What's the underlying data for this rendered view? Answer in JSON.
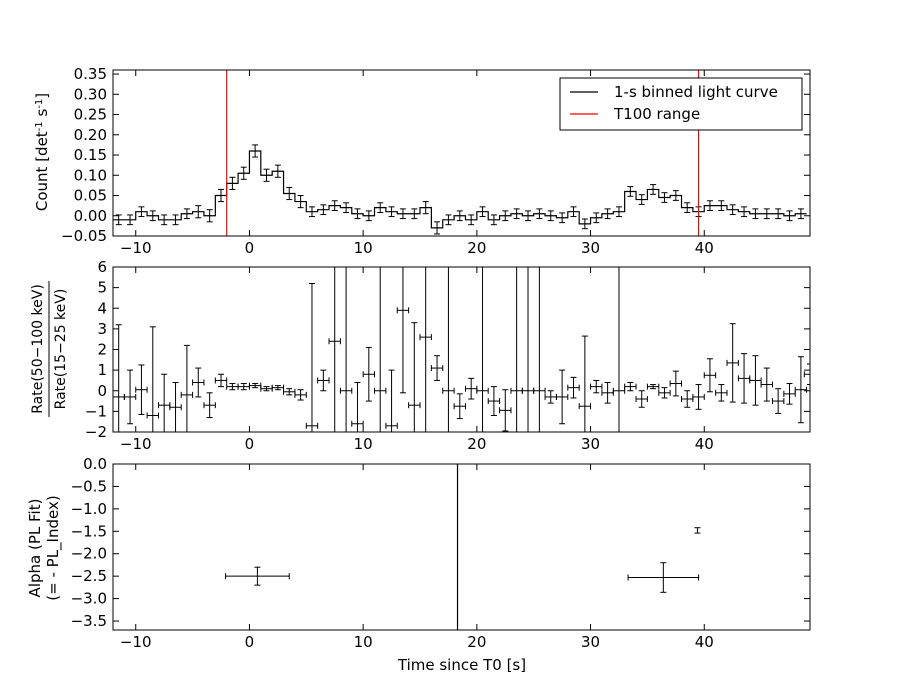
{
  "figure": {
    "background": "#ffffff",
    "line_color": "#000000",
    "range_color": "#ff0000"
  },
  "chart_data": [
    {
      "id": "p1",
      "type": "line",
      "style": "step",
      "title": "",
      "xlabel": "",
      "ylabel": "Count [det",
      "ylabel_sup": "-1",
      "ylabel_end": " s",
      "ylabel_sup2": "-1",
      "ylabel_close": "]",
      "xlim": [
        -12,
        49.3
      ],
      "ylim": [
        -0.05,
        0.36
      ],
      "yticks": [
        -0.05,
        0.0,
        0.05,
        0.1,
        0.15,
        0.2,
        0.25,
        0.3,
        0.35
      ],
      "ytick_labels": [
        "−0.05",
        "0.00",
        "0.05",
        "0.10",
        "0.15",
        "0.20",
        "0.25",
        "0.30",
        "0.35"
      ],
      "xticks": [
        -10,
        0,
        10,
        20,
        30,
        40
      ],
      "xtick_labels": [
        "−10",
        "0",
        "10",
        "20",
        "30",
        "40"
      ],
      "grid": false,
      "bin_width": 1,
      "x_start": -12,
      "values": [
        -0.01,
        -0.01,
        0.01,
        0.0,
        -0.01,
        -0.01,
        0.005,
        0.01,
        0.0,
        0.05,
        0.08,
        0.105,
        0.16,
        0.1,
        0.11,
        0.055,
        0.035,
        0.01,
        0.015,
        0.025,
        0.02,
        0.005,
        0.0,
        0.02,
        0.01,
        0.005,
        0.005,
        0.02,
        -0.03,
        -0.01,
        0.0,
        -0.01,
        0.01,
        -0.01,
        0.0,
        0.005,
        0.0,
        0.005,
        0.0,
        -0.005,
        0.01,
        -0.02,
        -0.005,
        0.005,
        0.01,
        0.06,
        0.04,
        0.065,
        0.045,
        0.05,
        0.02,
        0.01,
        0.025,
        0.025,
        0.015,
        0.01,
        0.005,
        0.005,
        0.005,
        0.0,
        0.005
      ],
      "errors": [
        0.012,
        0.012,
        0.012,
        0.012,
        0.012,
        0.012,
        0.012,
        0.015,
        0.015,
        0.015,
        0.015,
        0.015,
        0.015,
        0.015,
        0.015,
        0.015,
        0.015,
        0.012,
        0.012,
        0.012,
        0.012,
        0.012,
        0.012,
        0.012,
        0.012,
        0.012,
        0.012,
        0.015,
        0.015,
        0.012,
        0.012,
        0.012,
        0.012,
        0.012,
        0.012,
        0.012,
        0.012,
        0.012,
        0.012,
        0.012,
        0.012,
        0.012,
        0.012,
        0.012,
        0.012,
        0.012,
        0.012,
        0.012,
        0.012,
        0.012,
        0.012,
        0.012,
        0.012,
        0.012,
        0.012,
        0.012,
        0.012,
        0.012,
        0.012,
        0.012,
        0.012
      ],
      "vlines": [
        -2.0,
        39.5
      ],
      "legend": {
        "placement": "upper-right",
        "entries": [
          {
            "label": "1-s binned light curve",
            "color": "#000000"
          },
          {
            "label": "T100 range",
            "color": "#ff0000"
          }
        ]
      }
    },
    {
      "id": "p2",
      "type": "scatter",
      "style": "errorbar",
      "xlabel": "",
      "ylabel_num": "Rate(50−100 keV)",
      "ylabel_den": "Rate(15−25 keV)",
      "xlim": [
        -12,
        49.3
      ],
      "ylim": [
        -2,
        6
      ],
      "yticks": [
        -2,
        -1,
        0,
        1,
        2,
        3,
        4,
        5,
        6
      ],
      "ytick_labels": [
        "−2",
        "−1",
        "0",
        "1",
        "2",
        "3",
        "4",
        "5",
        "6"
      ],
      "xticks": [
        -10,
        0,
        10,
        20,
        30,
        40
      ],
      "xtick_labels": [
        "−10",
        "0",
        "10",
        "20",
        "30",
        "40"
      ],
      "grid": false,
      "points": [
        {
          "x": -11.5,
          "y": -0.3,
          "ey": [
            3.5,
            3.5
          ]
        },
        {
          "x": -10.5,
          "y": -0.3,
          "ey": 1.3
        },
        {
          "x": -9.5,
          "y": 0.05,
          "ey": 1.2
        },
        {
          "x": -8.5,
          "y": -1.2,
          "ey": [
            4.3,
            4.3
          ]
        },
        {
          "x": -7.5,
          "y": -0.7,
          "ey": 1.5
        },
        {
          "x": -6.5,
          "y": -0.8,
          "ey": 1.2
        },
        {
          "x": -5.5,
          "y": -0.2,
          "ey": [
            2.4,
            2.4
          ]
        },
        {
          "x": -4.5,
          "y": 0.4,
          "ey": 0.7
        },
        {
          "x": -3.5,
          "y": -0.7,
          "ey": 0.6
        },
        {
          "x": -2.5,
          "y": 0.5,
          "ey": 0.3
        },
        {
          "x": -1.5,
          "y": 0.2,
          "ey": 0.15
        },
        {
          "x": -0.5,
          "y": 0.2,
          "ey": 0.15
        },
        {
          "x": 0.5,
          "y": 0.25,
          "ey": 0.1
        },
        {
          "x": 1.5,
          "y": 0.1,
          "ey": 0.1
        },
        {
          "x": 2.5,
          "y": 0.15,
          "ey": 0.1
        },
        {
          "x": 3.5,
          "y": -0.05,
          "ey": 0.15
        },
        {
          "x": 4.5,
          "y": -0.2,
          "ey": 0.25
        },
        {
          "x": 5.5,
          "y": -1.7,
          "ey": [
            6.9,
            6.9
          ]
        },
        {
          "x": 6.5,
          "y": 0.5,
          "ey": 0.5
        },
        {
          "x": 7.5,
          "y": 2.4,
          "ey": [
            5,
            5
          ]
        },
        {
          "x": 8.5,
          "y": 0,
          "ey": [
            7,
            7
          ]
        },
        {
          "x": 9.5,
          "y": -1.6,
          "ey": [
            2,
            2
          ]
        },
        {
          "x": 10.5,
          "y": 0.8,
          "ey": 1.3
        },
        {
          "x": 11.5,
          "y": 0,
          "ey": [
            7,
            7
          ]
        },
        {
          "x": 12.5,
          "y": -1.7,
          "ey": [
            2.7,
            2.7
          ]
        },
        {
          "x": 13.5,
          "y": 3.9,
          "ey": [
            4,
            4
          ]
        },
        {
          "x": 14.5,
          "y": -0.7,
          "ey": [
            4,
            4
          ]
        },
        {
          "x": 15.5,
          "y": 2.6,
          "ey": [
            5,
            5
          ]
        },
        {
          "x": 16.5,
          "y": 1.1,
          "ey": 0.6
        },
        {
          "x": 17.5,
          "y": 0,
          "ey": [
            7,
            7
          ]
        },
        {
          "x": 18.5,
          "y": -0.75,
          "ey": 0.6
        },
        {
          "x": 19.5,
          "y": 0.1,
          "ey": 0.5
        },
        {
          "x": 20.5,
          "y": 0,
          "ey": [
            7,
            7
          ]
        },
        {
          "x": 21.5,
          "y": -0.5,
          "ey": 0.7
        },
        {
          "x": 22.5,
          "y": -0.95,
          "ey": 1.0
        },
        {
          "x": 23.5,
          "y": 0,
          "ey": [
            7,
            7
          ]
        },
        {
          "x": 24.5,
          "y": 0,
          "ey": [
            7,
            7
          ]
        },
        {
          "x": 25.5,
          "y": 0,
          "ey": [
            7,
            7
          ]
        },
        {
          "x": 26.5,
          "y": -0.3,
          "ey": 0.3
        },
        {
          "x": 27.5,
          "y": -0.3,
          "ey": 1.3
        },
        {
          "x": 28.5,
          "y": 0.15,
          "ey": 0.5
        },
        {
          "x": 29.5,
          "y": -0.75,
          "ey": [
            3.4,
            3.4
          ]
        },
        {
          "x": 30.5,
          "y": 0.2,
          "ey": 0.3
        },
        {
          "x": 31.5,
          "y": -0.1,
          "ey": 0.5
        },
        {
          "x": 32.5,
          "y": 0,
          "ey": [
            7,
            7
          ]
        },
        {
          "x": 33.5,
          "y": 0.2,
          "ey": 0.2
        },
        {
          "x": 34.5,
          "y": -0.4,
          "ey": 0.4
        },
        {
          "x": 35.5,
          "y": 0.2,
          "ey": 0.1
        },
        {
          "x": 36.5,
          "y": -0.1,
          "ey": 0.25
        },
        {
          "x": 37.5,
          "y": 0.35,
          "ey": 0.6
        },
        {
          "x": 38.5,
          "y": -0.4,
          "ey": 0.4
        },
        {
          "x": 39.5,
          "y": -0.3,
          "ey": 0.6
        },
        {
          "x": 40.5,
          "y": 0.75,
          "ey": 0.8
        },
        {
          "x": 41.5,
          "y": -0.1,
          "ey": 0.4
        },
        {
          "x": 42.5,
          "y": 1.35,
          "ey": 1.9
        },
        {
          "x": 43.5,
          "y": 0.6,
          "ey": 1.2
        },
        {
          "x": 44.5,
          "y": 0.5,
          "ey": 1.2
        },
        {
          "x": 45.5,
          "y": 0.3,
          "ey": 0.8
        },
        {
          "x": 46.5,
          "y": -0.5,
          "ey": 0.6
        },
        {
          "x": 47.5,
          "y": -0.15,
          "ey": 0.5
        },
        {
          "x": 48.5,
          "y": 0.05,
          "ey": 1.6
        },
        {
          "x": 49.3,
          "y": 0.8,
          "ey": 0.5
        }
      ]
    },
    {
      "id": "p3",
      "type": "scatter",
      "style": "errorbar",
      "xlabel": "Time since T0 [s]",
      "ylabel_line1": "Alpha (PL Fit)",
      "ylabel_line2": "(= - PL_Index)",
      "xlim": [
        -12,
        49.3
      ],
      "ylim": [
        -3.7,
        0.0
      ],
      "yticks": [
        0.0,
        -0.5,
        -1.0,
        -1.5,
        -2.0,
        -2.5,
        -3.0,
        -3.5
      ],
      "ytick_labels": [
        "0.0",
        "−0.5",
        "−1.0",
        "−1.5",
        "−2.0",
        "−2.5",
        "−3.0",
        "−3.5"
      ],
      "xticks": [
        -10,
        0,
        10,
        20,
        30,
        40
      ],
      "xtick_labels": [
        "−10",
        "0",
        "10",
        "20",
        "30",
        "40"
      ],
      "grid": false,
      "points": [
        {
          "x": 0.7,
          "y": -2.5,
          "xerr": [
            2.8,
            2.8
          ],
          "yerr": 0.2
        },
        {
          "x": 36.4,
          "y": -2.53,
          "xerr": [
            3.1,
            3.1
          ],
          "yerr": 0.33
        },
        {
          "x": 39.4,
          "y": -1.48,
          "xerr": [
            0,
            0
          ],
          "yerr": 0.06
        }
      ],
      "vlines_black": [
        18.3
      ]
    }
  ]
}
